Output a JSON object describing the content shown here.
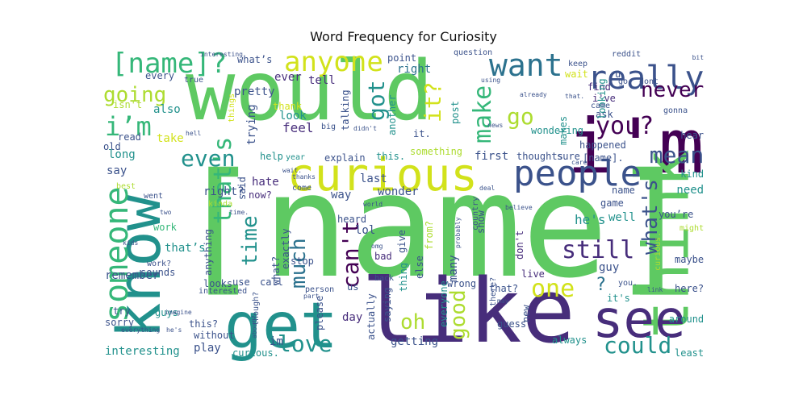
{
  "figure": {
    "title": "Word Frequency for Curiosity"
  },
  "colors": {
    "green": "#5ec962",
    "lime": "#addc30",
    "yellow": "#d2e21b",
    "teal": "#21918c",
    "blue": "#2c728e",
    "navy": "#3b528b",
    "indigo": "#472d7b",
    "purple": "#440154",
    "aqua": "#35b779",
    "cyan": "#28ae80"
  },
  "words": [
    {
      "text": "[name]",
      "color": "green"
    },
    {
      "text": "would",
      "color": "green"
    },
    {
      "text": "know",
      "color": "teal"
    },
    {
      "text": "like",
      "color": "indigo"
    },
    {
      "text": "i'm",
      "color": "purple"
    },
    {
      "text": "get",
      "color": "teal"
    },
    {
      "text": "think",
      "color": "green"
    },
    {
      "text": "see",
      "color": "indigo"
    },
    {
      "text": "curious",
      "color": "yellow"
    },
    {
      "text": "people",
      "color": "navy"
    },
    {
      "text": "really",
      "color": "navy"
    },
    {
      "text": "someone",
      "color": "aqua"
    },
    {
      "text": "want",
      "color": "blue"
    },
    {
      "text": "anyone",
      "color": "yellow"
    },
    {
      "text": "[name]?",
      "color": "aqua"
    },
    {
      "text": "going",
      "color": "lime"
    },
    {
      "text": "i’m",
      "color": "aqua"
    },
    {
      "text": "even",
      "color": "teal"
    },
    {
      "text": "got",
      "color": "teal"
    },
    {
      "text": "it?",
      "color": "yellow"
    },
    {
      "text": "make",
      "color": "aqua"
    },
    {
      "text": "go",
      "color": "lime"
    },
    {
      "text": "never",
      "color": "purple"
    },
    {
      "text": "you?",
      "color": "purple"
    },
    {
      "text": "mean",
      "color": "navy"
    },
    {
      "text": "that's",
      "color": "aqua"
    },
    {
      "text": "time",
      "color": "teal"
    },
    {
      "text": "much",
      "color": "blue"
    },
    {
      "text": "can't",
      "color": "purple"
    },
    {
      "text": "what's",
      "color": "navy"
    },
    {
      "text": "still",
      "color": "indigo"
    },
    {
      "text": "one",
      "color": "yellow"
    },
    {
      "text": "oh",
      "color": "lime"
    },
    {
      "text": "good",
      "color": "lime"
    },
    {
      "text": "love",
      "color": "teal"
    },
    {
      "text": "could",
      "color": "teal"
    },
    {
      "text": "?",
      "color": "blue"
    },
    {
      "text": "what’s",
      "color": "navy"
    },
    {
      "text": "pretty",
      "color": "navy"
    },
    {
      "text": "ever",
      "color": "indigo"
    },
    {
      "text": "point",
      "color": "navy"
    },
    {
      "text": "right",
      "color": "blue"
    },
    {
      "text": "every",
      "color": "navy"
    },
    {
      "text": "true",
      "color": "navy"
    },
    {
      "text": "isn't",
      "color": "lime"
    },
    {
      "text": "also",
      "color": "teal"
    },
    {
      "text": "take",
      "color": "yellow"
    },
    {
      "text": "read",
      "color": "navy"
    },
    {
      "text": "old",
      "color": "navy"
    },
    {
      "text": "long",
      "color": "teal"
    },
    {
      "text": "say",
      "color": "navy"
    },
    {
      "text": "tell",
      "color": "indigo"
    },
    {
      "text": "thank",
      "color": "yellow"
    },
    {
      "text": "look",
      "color": "teal"
    },
    {
      "text": "feel",
      "color": "indigo"
    },
    {
      "text": "talking",
      "color": "navy"
    },
    {
      "text": "trying",
      "color": "navy"
    },
    {
      "text": "explain",
      "color": "navy"
    },
    {
      "text": "this.",
      "color": "teal"
    },
    {
      "text": "help",
      "color": "teal"
    },
    {
      "text": "year",
      "color": "teal"
    },
    {
      "text": "right?",
      "color": "navy"
    },
    {
      "text": "said",
      "color": "navy"
    },
    {
      "text": "hate",
      "color": "indigo"
    },
    {
      "text": "now?",
      "color": "indigo"
    },
    {
      "text": "post",
      "color": "teal"
    },
    {
      "text": "another",
      "color": "teal"
    },
    {
      "text": "something",
      "color": "lime"
    },
    {
      "text": "first",
      "color": "navy"
    },
    {
      "text": "thoughts",
      "color": "navy"
    },
    {
      "text": "sure",
      "color": "navy"
    },
    {
      "text": "last",
      "color": "navy"
    },
    {
      "text": "way",
      "color": "navy"
    },
    {
      "text": "wonder",
      "color": "navy"
    },
    {
      "text": "wondering",
      "color": "teal"
    },
    {
      "text": "makes",
      "color": "teal"
    },
    {
      "text": "ask",
      "color": "navy"
    },
    {
      "text": "happened",
      "color": "navy"
    },
    {
      "text": "[name].",
      "color": "navy"
    },
    {
      "text": "find",
      "color": "indigo"
    },
    {
      "text": "i've",
      "color": "indigo"
    },
    {
      "text": "looking",
      "color": "teal"
    },
    {
      "text": "hear",
      "color": "navy"
    },
    {
      "text": "kind",
      "color": "teal"
    },
    {
      "text": "need",
      "color": "teal"
    },
    {
      "text": "name",
      "color": "navy"
    },
    {
      "text": "game",
      "color": "navy"
    },
    {
      "text": "well",
      "color": "teal"
    },
    {
      "text": "you’re",
      "color": "navy"
    },
    {
      "text": "he's",
      "color": "teal"
    },
    {
      "text": "it's",
      "color": "teal"
    },
    {
      "text": "maybe",
      "color": "navy"
    },
    {
      "text": "guy",
      "color": "navy"
    },
    {
      "text": "curious.",
      "color": "lime"
    },
    {
      "text": "here?",
      "color": "navy"
    },
    {
      "text": "you.",
      "color": "navy"
    },
    {
      "text": "around",
      "color": "teal"
    },
    {
      "text": "least",
      "color": "teal"
    },
    {
      "text": "always",
      "color": "teal"
    },
    {
      "text": "guess",
      "color": "navy"
    },
    {
      "text": "new",
      "color": "navy"
    },
    {
      "text": "don't",
      "color": "indigo"
    },
    {
      "text": "live",
      "color": "indigo"
    },
    {
      "text": "that?",
      "color": "navy"
    },
    {
      "text": "many",
      "color": "navy"
    },
    {
      "text": "wrong",
      "color": "navy"
    },
    {
      "text": "everyone",
      "color": "teal"
    },
    {
      "text": "saying",
      "color": "navy"
    },
    {
      "text": "actually",
      "color": "navy"
    },
    {
      "text": "getting",
      "color": "navy"
    },
    {
      "text": "else",
      "color": "navy"
    },
    {
      "text": "thing",
      "color": "teal"
    },
    {
      "text": "bad",
      "color": "indigo"
    },
    {
      "text": "give",
      "color": "navy"
    },
    {
      "text": "from?",
      "color": "lime"
    },
    {
      "text": "lol",
      "color": "navy"
    },
    {
      "text": "heard",
      "color": "navy"
    },
    {
      "text": "show",
      "color": "navy"
    },
    {
      "text": "country",
      "color": "navy"
    },
    {
      "text": "us",
      "color": "navy"
    },
    {
      "text": "day",
      "color": "indigo"
    },
    {
      "text": "please",
      "color": "navy"
    },
    {
      "text": "im",
      "color": "navy"
    },
    {
      "text": "call",
      "color": "navy"
    },
    {
      "text": "stop",
      "color": "navy"
    },
    {
      "text": "exactly",
      "color": "navy"
    },
    {
      "text": "what?",
      "color": "navy"
    },
    {
      "text": "use",
      "color": "navy"
    },
    {
      "text": "looks",
      "color": "navy"
    },
    {
      "text": "anything",
      "color": "navy"
    },
    {
      "text": "without",
      "color": "navy"
    },
    {
      "text": "play",
      "color": "navy"
    },
    {
      "text": "this?",
      "color": "navy"
    },
    {
      "text": "guys",
      "color": "teal"
    },
    {
      "text": "curious.",
      "color": "teal"
    },
    {
      "text": "interesting",
      "color": "teal"
    },
    {
      "text": "sorry",
      "color": "navy"
    },
    {
      "text": "remember",
      "color": "navy"
    },
    {
      "text": "sounds",
      "color": "navy"
    },
    {
      "text": "work?",
      "color": "navy"
    },
    {
      "text": "work",
      "color": "aqua"
    },
    {
      "text": "that’s",
      "color": "teal"
    },
    {
      "text": "try",
      "color": "navy"
    },
    {
      "text": "went",
      "color": "navy"
    },
    {
      "text": "best",
      "color": "lime"
    },
    {
      "text": "kinda",
      "color": "lime"
    },
    {
      "text": "though?",
      "color": "navy"
    },
    {
      "text": "might",
      "color": "lime"
    },
    {
      "text": "keep",
      "color": "navy"
    },
    {
      "text": "wait",
      "color": "yellow"
    },
    {
      "text": "came",
      "color": "navy"
    },
    {
      "text": "gonna",
      "color": "navy"
    },
    {
      "text": "dont",
      "color": "navy"
    },
    {
      "text": "question",
      "color": "navy"
    },
    {
      "text": "reddit",
      "color": "navy"
    },
    {
      "text": "things",
      "color": "yellow"
    },
    {
      "text": "interested",
      "color": "navy"
    },
    {
      "text": "imagine",
      "color": "navy"
    },
    {
      "text": "person",
      "color": "navy"
    },
    {
      "text": "back",
      "color": "navy"
    },
    {
      "text": "probably",
      "color": "navy"
    },
    {
      "text": "there?",
      "color": "navy"
    },
    {
      "text": "it.",
      "color": "navy"
    },
    {
      "text": "big",
      "color": "navy"
    },
    {
      "text": "didn't",
      "color": "navy"
    },
    {
      "text": "hell",
      "color": "navy"
    },
    {
      "text": "come",
      "color": "navy"
    },
    {
      "text": "thanks",
      "color": "navy"
    },
    {
      "text": "u",
      "color": "navy"
    },
    {
      "text": "go",
      "color": "navy"
    },
    {
      "text": "already",
      "color": "navy"
    },
    {
      "text": "using",
      "color": "navy"
    },
    {
      "text": "news",
      "color": "navy"
    },
    {
      "text": "interesting",
      "color": "navy"
    },
    {
      "text": "bit",
      "color": "navy"
    },
    {
      "text": "link",
      "color": "navy"
    },
    {
      "text": "part",
      "color": "navy"
    },
    {
      "text": "kids",
      "color": "navy"
    },
    {
      "text": "he's",
      "color": "navy"
    },
    {
      "text": "deal",
      "color": "navy"
    },
    {
      "text": "believe",
      "color": "navy"
    },
    {
      "text": "world",
      "color": "navy"
    },
    {
      "text": "omg",
      "color": "navy"
    },
    {
      "text": "may",
      "color": "navy"
    },
    {
      "text": "about?",
      "color": "navy"
    },
    {
      "text": "everything",
      "color": "navy"
    },
    {
      "text": "two",
      "color": "navy"
    },
    {
      "text": "time.",
      "color": "navy"
    },
    {
      "text": "wait.",
      "color": "navy"
    },
    {
      "text": "care",
      "color": "navy"
    },
    {
      "text": "that.",
      "color": "navy"
    }
  ]
}
